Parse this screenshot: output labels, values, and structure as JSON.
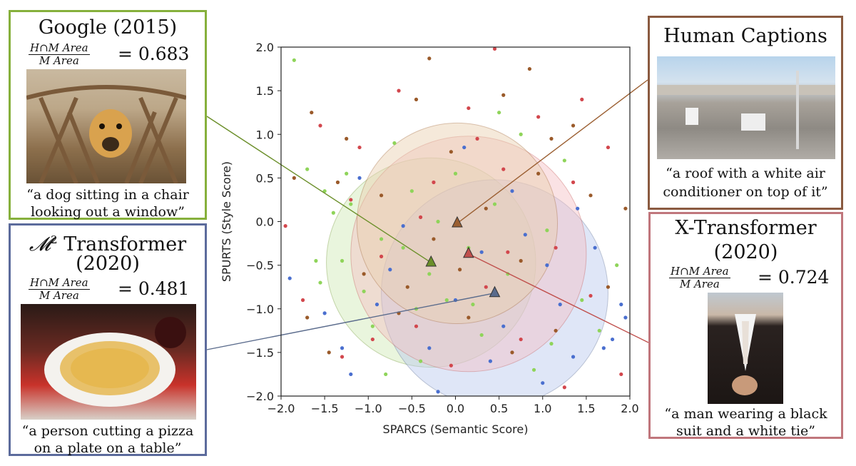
{
  "chart_data": {
    "type": "scatter",
    "xlabel": "SPARCS (Semantic Score)",
    "ylabel": "SPURTS (Style Score)",
    "xlim": [
      -2.0,
      2.0
    ],
    "ylim": [
      -2.0,
      2.0
    ],
    "x_ticks": [
      "−2.0",
      "−1.5",
      "−1.0",
      "−0.5",
      "0.0",
      "0.5",
      "1.0",
      "1.5",
      "2.0"
    ],
    "y_ticks": [
      "2.0",
      "1.5",
      "1.0",
      "0.5",
      "0.0",
      "−0.5",
      "−1.0",
      "−1.5",
      "−2.0"
    ],
    "x_tick_values": [
      -2.0,
      -1.5,
      -1.0,
      -0.5,
      0.0,
      0.5,
      1.0,
      1.5,
      2.0
    ],
    "y_tick_values": [
      2.0,
      1.5,
      1.0,
      0.5,
      0.0,
      -0.5,
      -1.0,
      -1.5,
      -2.0
    ],
    "series": [
      {
        "name": "Google (2015)",
        "color": "#8fd45a",
        "marker_color": "#6b8f2a",
        "circle_fill": "#cfe9b4",
        "centroid": [
          -0.28,
          -0.47
        ],
        "radius": 1.2,
        "points": [
          [
            -1.85,
            1.85
          ],
          [
            -1.7,
            0.6
          ],
          [
            -1.55,
            -0.7
          ],
          [
            -1.4,
            0.1
          ],
          [
            -1.3,
            -0.45
          ],
          [
            -1.2,
            0.2
          ],
          [
            -1.05,
            -0.8
          ],
          [
            -0.95,
            -1.2
          ],
          [
            -0.85,
            -0.2
          ],
          [
            -0.7,
            0.9
          ],
          [
            -0.6,
            -0.3
          ],
          [
            -0.5,
            0.35
          ],
          [
            -0.4,
            -1.6
          ],
          [
            -0.3,
            -0.6
          ],
          [
            -0.2,
            0.0
          ],
          [
            -0.1,
            -0.9
          ],
          [
            0.0,
            0.55
          ],
          [
            0.15,
            -0.3
          ],
          [
            0.3,
            -1.3
          ],
          [
            0.45,
            0.2
          ],
          [
            0.6,
            -0.6
          ],
          [
            0.75,
            1.0
          ],
          [
            0.9,
            -1.7
          ],
          [
            1.05,
            -0.1
          ],
          [
            1.25,
            0.7
          ],
          [
            1.45,
            -0.9
          ],
          [
            1.65,
            -1.25
          ],
          [
            1.85,
            -0.5
          ],
          [
            -1.6,
            -0.45
          ],
          [
            -0.8,
            -1.75
          ],
          [
            0.5,
            1.25
          ],
          [
            -1.25,
            0.55
          ],
          [
            0.2,
            -0.95
          ],
          [
            -0.45,
            -1.0
          ],
          [
            1.1,
            -1.4
          ],
          [
            -1.5,
            0.35
          ]
        ]
      },
      {
        "name": "M^2 Transformer (2020)",
        "color": "#4a6fcf",
        "marker_color": "#5a6b8c",
        "circle_fill": "#b9c8ee",
        "centroid": [
          0.45,
          -0.82
        ],
        "radius": 1.3,
        "points": [
          [
            -1.9,
            -0.65
          ],
          [
            -1.5,
            -1.05
          ],
          [
            -1.2,
            -1.75
          ],
          [
            -0.9,
            -0.95
          ],
          [
            -0.6,
            -0.05
          ],
          [
            -0.3,
            -1.45
          ],
          [
            0.0,
            -0.9
          ],
          [
            0.3,
            -0.35
          ],
          [
            0.55,
            -1.2
          ],
          [
            0.8,
            -0.15
          ],
          [
            1.0,
            -1.85
          ],
          [
            1.2,
            -0.95
          ],
          [
            1.4,
            0.15
          ],
          [
            1.6,
            -0.3
          ],
          [
            1.8,
            -1.35
          ],
          [
            1.95,
            -1.1
          ],
          [
            -1.1,
            0.5
          ],
          [
            0.65,
            0.35
          ],
          [
            -0.2,
            -1.95
          ],
          [
            1.35,
            -1.55
          ],
          [
            0.1,
            0.85
          ],
          [
            1.7,
            -1.45
          ],
          [
            -0.75,
            -0.55
          ],
          [
            1.9,
            -0.95
          ],
          [
            0.4,
            -1.6
          ],
          [
            -1.3,
            -1.45
          ],
          [
            1.05,
            -0.5
          ]
        ]
      },
      {
        "name": "X-Transformer (2020)",
        "color": "#d2474d",
        "marker_color": "#c0504d",
        "circle_fill": "#f3bfc4",
        "centroid": [
          0.15,
          -0.37
        ],
        "radius": 1.35,
        "points": [
          [
            -1.95,
            -0.05
          ],
          [
            -1.75,
            -0.9
          ],
          [
            -1.55,
            1.1
          ],
          [
            -1.3,
            -1.55
          ],
          [
            -1.1,
            0.85
          ],
          [
            -0.85,
            -0.4
          ],
          [
            -0.65,
            1.5
          ],
          [
            -0.45,
            -1.2
          ],
          [
            -0.25,
            0.45
          ],
          [
            -0.05,
            -1.65
          ],
          [
            0.15,
            1.3
          ],
          [
            0.35,
            -0.75
          ],
          [
            0.55,
            0.6
          ],
          [
            0.75,
            -1.35
          ],
          [
            0.95,
            1.2
          ],
          [
            1.15,
            -0.3
          ],
          [
            1.35,
            0.45
          ],
          [
            1.55,
            -0.85
          ],
          [
            1.75,
            0.85
          ],
          [
            1.9,
            -1.75
          ],
          [
            0.45,
            1.98
          ],
          [
            -0.4,
            0.05
          ],
          [
            0.6,
            -0.35
          ],
          [
            1.25,
            -1.9
          ],
          [
            -1.2,
            0.25
          ],
          [
            0.25,
            0.95
          ],
          [
            -0.95,
            -1.35
          ],
          [
            1.45,
            1.4
          ]
        ]
      },
      {
        "name": "Human Captions",
        "color": "#9a5a2a",
        "marker_color": "#9b5f32",
        "circle_fill": "#e8cfae",
        "centroid": [
          0.02,
          -0.02
        ],
        "radius": 1.15,
        "points": [
          [
            -1.85,
            0.5
          ],
          [
            -1.65,
            1.25
          ],
          [
            -1.45,
            -1.5
          ],
          [
            -1.25,
            0.95
          ],
          [
            -1.05,
            -0.6
          ],
          [
            -0.85,
            0.3
          ],
          [
            -0.65,
            -1.05
          ],
          [
            -0.45,
            1.4
          ],
          [
            -0.25,
            -0.2
          ],
          [
            -0.05,
            0.8
          ],
          [
            0.15,
            -1.1
          ],
          [
            0.35,
            0.15
          ],
          [
            0.55,
            1.45
          ],
          [
            0.75,
            -0.45
          ],
          [
            0.95,
            0.55
          ],
          [
            1.15,
            -1.25
          ],
          [
            1.35,
            1.1
          ],
          [
            1.55,
            0.3
          ],
          [
            1.75,
            -0.75
          ],
          [
            1.95,
            0.15
          ],
          [
            -1.35,
            0.45
          ],
          [
            -0.3,
            1.87
          ],
          [
            0.85,
            1.75
          ],
          [
            -0.55,
            -0.75
          ],
          [
            0.05,
            -0.55
          ],
          [
            1.1,
            0.95
          ],
          [
            -1.7,
            -1.1
          ],
          [
            0.65,
            -1.5
          ]
        ]
      }
    ]
  },
  "panels": {
    "google": {
      "title": "Google (2015)",
      "frac_num": "H∩M  Area",
      "frac_den": "M  Area",
      "eq": "= 0.683",
      "caption_line1": "“a dog sitting in a chair",
      "caption_line2": "looking out a window”",
      "border": "#86b03c"
    },
    "m2": {
      "title_script": "𝓜",
      "title_sup": "2",
      "title_rest": " Transformer",
      "year": "(2020)",
      "frac_num": "H∩M  Area",
      "frac_den": "M  Area",
      "eq": "= 0.481",
      "caption_line1": "“a person cutting a pizza",
      "caption_line2": "on a plate on a table”",
      "border": "#5c6b9c"
    },
    "human": {
      "title": "Human Captions",
      "caption_line1": "“a roof with a white air",
      "caption_line2": "conditioner on top of it”",
      "border": "#8a5a40"
    },
    "xt": {
      "title": "X-Transformer",
      "year": "(2020)",
      "frac_num": "H∩M  Area",
      "frac_den": "M  Area",
      "eq": "= 0.724",
      "caption_line1": "“a man wearing a black",
      "caption_line2": "suit and a white tie”",
      "border": "#c0767c"
    }
  }
}
